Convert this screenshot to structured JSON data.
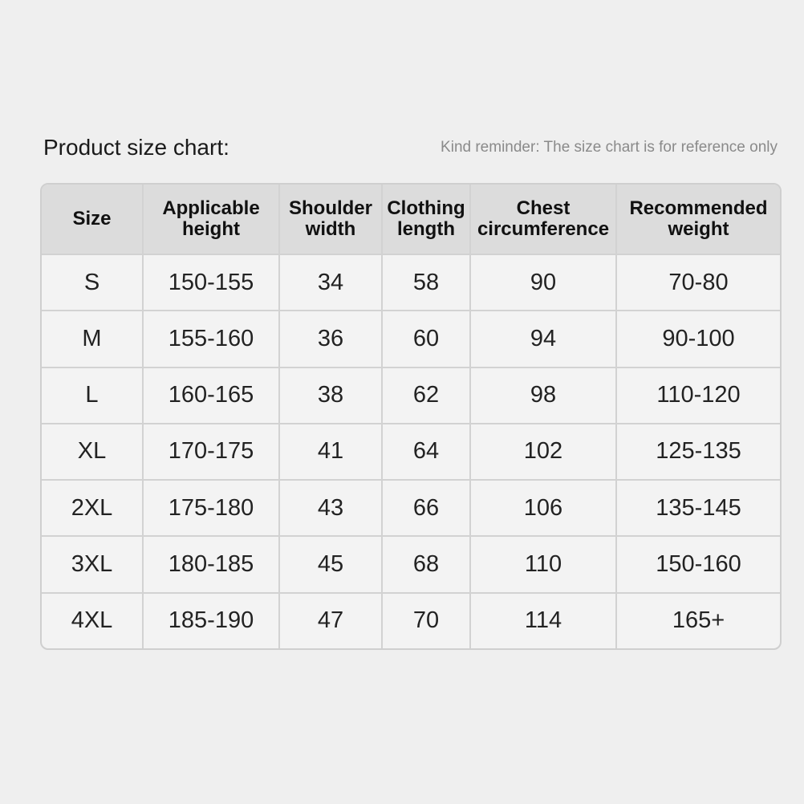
{
  "title": "Product size chart:",
  "reminder": "Kind reminder: The size chart is for reference only",
  "columns": [
    [
      "Size"
    ],
    [
      "Applicable",
      "height"
    ],
    [
      "Shoulder",
      "width"
    ],
    [
      "Clothing",
      "length"
    ],
    [
      "Chest",
      "circumference"
    ],
    [
      "Recommended",
      "weight"
    ]
  ],
  "rows": [
    [
      "S",
      "150-155",
      "34",
      "58",
      "90",
      "70-80"
    ],
    [
      "M",
      "155-160",
      "36",
      "60",
      "94",
      "90-100"
    ],
    [
      "L",
      "160-165",
      "38",
      "62",
      "98",
      "110-120"
    ],
    [
      "XL",
      "170-175",
      "41",
      "64",
      "102",
      "125-135"
    ],
    [
      "2XL",
      "175-180",
      "43",
      "66",
      "106",
      "135-145"
    ],
    [
      "3XL",
      "180-185",
      "45",
      "68",
      "110",
      "150-160"
    ],
    [
      "4XL",
      "185-190",
      "47",
      "70",
      "114",
      "165+"
    ]
  ]
}
